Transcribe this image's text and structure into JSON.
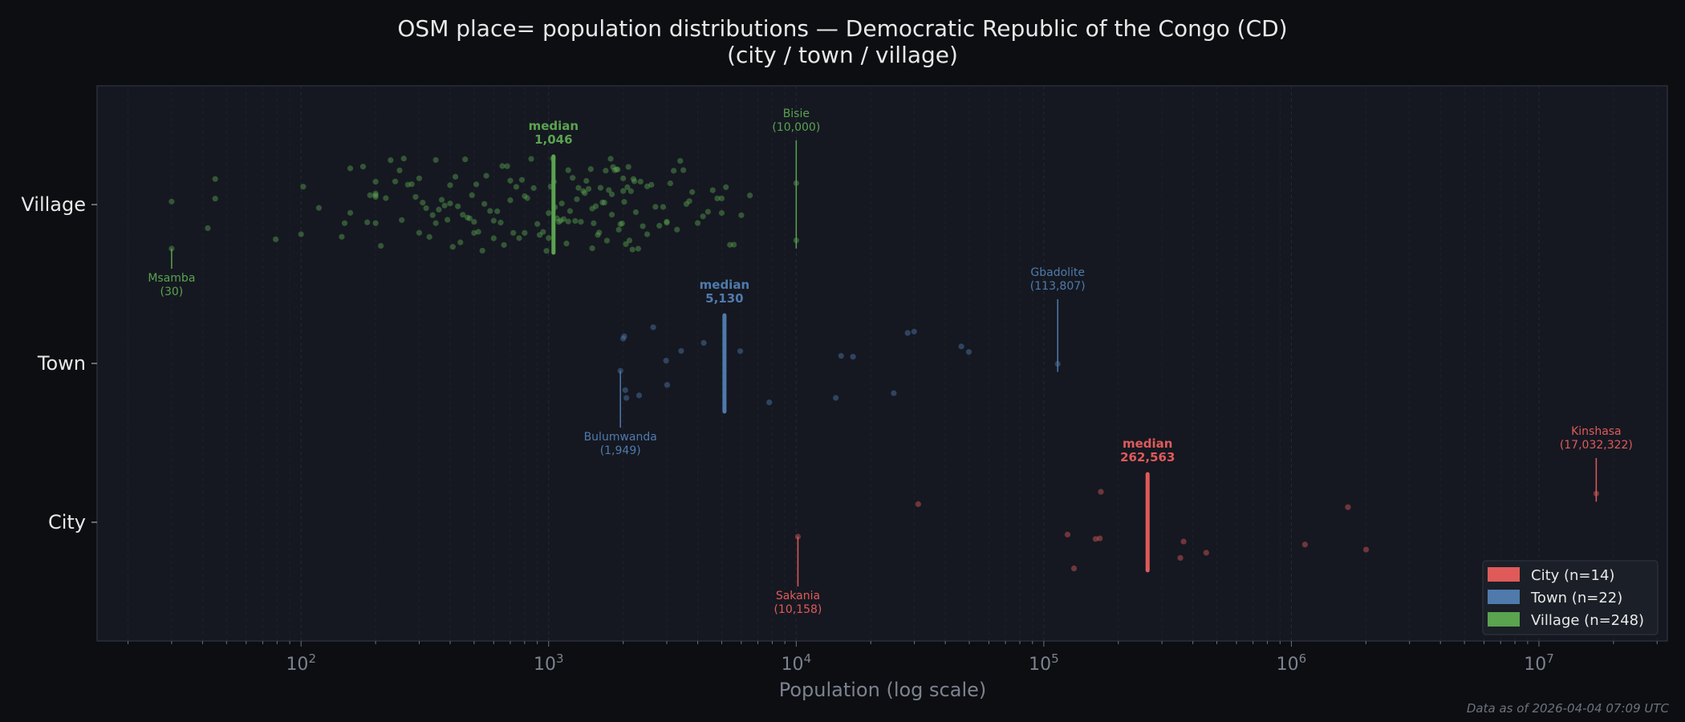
{
  "chart_data": {
    "type": "scatter",
    "title_line1": "OSM place= population distributions — Democratic Republic of the Congo (CD)",
    "title_line2": "(city / town / village)",
    "xlabel": "Population (log scale)",
    "xscale": "log",
    "xlim": [
      15,
      33000000
    ],
    "x_ticks": [
      {
        "value": 100,
        "base": "10",
        "exp": "2"
      },
      {
        "value": 1000,
        "base": "10",
        "exp": "3"
      },
      {
        "value": 10000,
        "base": "10",
        "exp": "4"
      },
      {
        "value": 100000,
        "base": "10",
        "exp": "5"
      },
      {
        "value": 1000000,
        "base": "10",
        "exp": "6"
      },
      {
        "value": 10000000,
        "base": "10",
        "exp": "7"
      }
    ],
    "categories": [
      "Village",
      "Town",
      "City"
    ],
    "grid": "vertical minor dashed",
    "legend_placement": "bottom-right",
    "footer": "Data as of 2026-04-04 07:09 UTC",
    "series": [
      {
        "name": "City",
        "legend": "City  (n=14)",
        "color": "#e05a5a",
        "row": 2,
        "median": 262563,
        "median_label": "median",
        "median_text": "262,563",
        "annotations": [
          {
            "name": "Sakania",
            "value": 10158,
            "text": "(10,158)",
            "side": "below"
          },
          {
            "name": "Kinshasa",
            "value": 17032322,
            "text": "(17,032,322)",
            "side": "above"
          }
        ],
        "values": [
          10158,
          31100,
          124700,
          132400,
          161800,
          168300,
          170000,
          356000,
          367000,
          453000,
          1135000,
          1692000,
          2003000,
          17032322
        ]
      },
      {
        "name": "Town",
        "legend": "Town  (n=22)",
        "color": "#4f7aab",
        "row": 1,
        "median": 5130,
        "median_label": "median",
        "median_text": "5,130",
        "annotations": [
          {
            "name": "Bulumwanda",
            "value": 1949,
            "text": "(1,949)",
            "side": "below"
          },
          {
            "name": "Gbadolite",
            "value": 113807,
            "text": "(113,807)",
            "side": "above"
          }
        ],
        "values": [
          1949,
          2000,
          2020,
          2040,
          2060,
          2320,
          2645,
          2980,
          3010,
          3430,
          4230,
          5940,
          7780,
          14450,
          15180,
          16950,
          24770,
          28180,
          29930,
          46450,
          49800,
          113807
        ]
      },
      {
        "name": "Village",
        "legend": "Village  (n=248)",
        "color": "#5aa34f",
        "row": 0,
        "median": 1046,
        "median_label": "median",
        "median_text": "1,046",
        "annotations": [
          {
            "name": "Msamba",
            "value": 30,
            "text": "(30)",
            "side": "below"
          },
          {
            "name": "Bisie",
            "value": 10000,
            "text": "(10,000)",
            "side": "above"
          }
        ],
        "values": [
          30,
          30,
          42,
          45,
          45,
          79,
          100,
          102,
          118,
          146,
          150,
          158,
          158,
          178,
          185,
          190,
          200,
          200,
          200,
          200,
          200,
          210,
          220,
          230,
          240,
          250,
          255,
          260,
          270,
          280,
          290,
          300,
          300,
          310,
          320,
          330,
          340,
          350,
          350,
          360,
          370,
          380,
          390,
          400,
          400,
          410,
          420,
          430,
          440,
          450,
          460,
          470,
          480,
          490,
          500,
          500,
          510,
          520,
          540,
          550,
          560,
          580,
          600,
          600,
          620,
          640,
          650,
          660,
          680,
          700,
          700,
          720,
          740,
          760,
          780,
          800,
          800,
          820,
          850,
          870,
          900,
          920,
          950,
          980,
          1000,
          1000,
          1020,
          1040,
          1050,
          1060,
          1080,
          1100,
          1120,
          1130,
          1150,
          1180,
          1200,
          1200,
          1220,
          1250,
          1280,
          1300,
          1320,
          1350,
          1380,
          1400,
          1420,
          1450,
          1480,
          1500,
          1500,
          1520,
          1550,
          1580,
          1600,
          1620,
          1650,
          1680,
          1700,
          1720,
          1750,
          1780,
          1800,
          1800,
          1820,
          1850,
          1880,
          1900,
          1920,
          1950,
          1980,
          2000,
          2000,
          2020,
          2050,
          2080,
          2100,
          2120,
          2150,
          2180,
          2200,
          2220,
          2250,
          2300,
          2350,
          2400,
          2500,
          2500,
          2600,
          2700,
          2800,
          2900,
          3000,
          3000,
          3100,
          3200,
          3300,
          3400,
          3500,
          3600,
          3700,
          3800,
          4000,
          4200,
          4400,
          4600,
          4800,
          5000,
          5000,
          5200,
          5400,
          5600,
          6000,
          6500,
          10000,
          10000
        ]
      }
    ]
  }
}
